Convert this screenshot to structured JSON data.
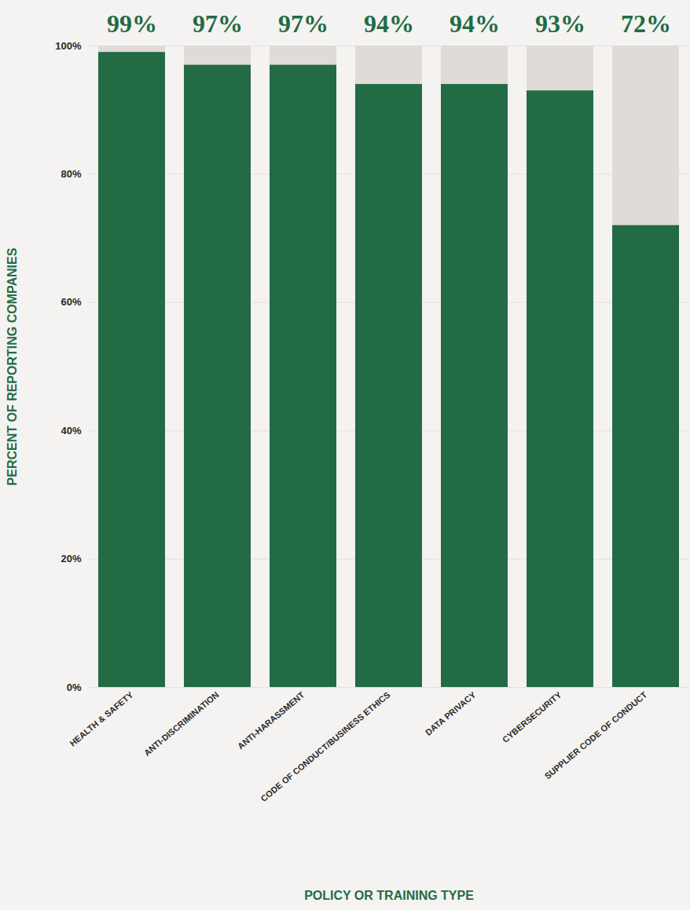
{
  "chart_data": {
    "type": "bar",
    "categories": [
      "HEALTH & SAFETY",
      "ANTI-DISCRIMINATION",
      "ANTI-HARASSMENT",
      "CODE OF CONDUCT/BUSINESS ETHICS",
      "DATA PRIVACY",
      "CYBERSECURITY",
      "SUPPLIER CODE OF CONDUCT"
    ],
    "values": [
      99,
      97,
      97,
      94,
      94,
      93,
      72
    ],
    "value_labels": [
      "99%",
      "97%",
      "97%",
      "94%",
      "94%",
      "93%",
      "72%"
    ],
    "data_labels": true,
    "color": "#236b45",
    "x_label": "POLICY OR TRAINING TYPE",
    "y_label": "PERCENT OF REPORTING COMPANIES",
    "ylim": [
      0,
      100
    ],
    "yticks": [
      {
        "value": 0,
        "label": "0%"
      },
      {
        "value": 20,
        "label": "20%"
      },
      {
        "value": 40,
        "label": "40%"
      },
      {
        "value": 60,
        "label": "60%"
      },
      {
        "value": 80,
        "label": "80%"
      },
      {
        "value": 100,
        "label": "100%"
      }
    ],
    "grid": true
  }
}
